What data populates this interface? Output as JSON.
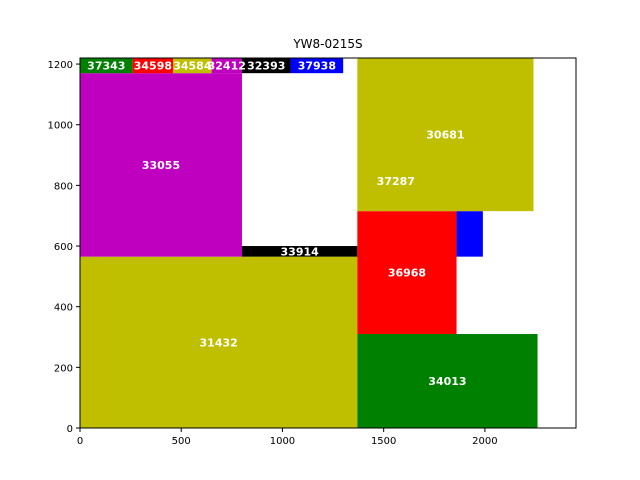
{
  "chart_data": {
    "type": "rectangle-packing",
    "title": "YW8-0215S",
    "xlabel": "",
    "ylabel": "",
    "xlim": [
      0,
      2450
    ],
    "ylim": [
      0,
      1220
    ],
    "xticks": [
      0,
      500,
      1000,
      1500,
      2000
    ],
    "yticks": [
      0,
      200,
      400,
      600,
      800,
      1000,
      1200
    ],
    "grid": false,
    "rects": [
      {
        "label": "31432",
        "x0": 0,
        "y0": 0,
        "x1": 1370,
        "y1": 565,
        "color": "#bfbf00"
      },
      {
        "label": "33055",
        "x0": 0,
        "y0": 565,
        "x1": 800,
        "y1": 1170,
        "color": "#bf00bf"
      },
      {
        "label": "33914",
        "x0": 800,
        "y0": 565,
        "x1": 1370,
        "y1": 600,
        "color": "#000000"
      },
      {
        "label": "37343",
        "x0": 0,
        "y0": 1170,
        "x1": 260,
        "y1": 1220,
        "color": "#008000"
      },
      {
        "label": "34598",
        "x0": 260,
        "y0": 1170,
        "x1": 460,
        "y1": 1220,
        "color": "#ff0000"
      },
      {
        "label": "34584",
        "x0": 460,
        "y0": 1170,
        "x1": 650,
        "y1": 1220,
        "color": "#bfbf00"
      },
      {
        "label": "32412",
        "x0": 650,
        "y0": 1170,
        "x1": 800,
        "y1": 1220,
        "color": "#bf00bf"
      },
      {
        "label": "32393",
        "x0": 800,
        "y0": 1170,
        "x1": 1040,
        "y1": 1220,
        "color": "#000000"
      },
      {
        "label": "37938",
        "x0": 1040,
        "y0": 1170,
        "x1": 1300,
        "y1": 1220,
        "color": "#0000ff"
      },
      {
        "label": "34013",
        "x0": 1370,
        "y0": 0,
        "x1": 2260,
        "y1": 310,
        "color": "#008000"
      },
      {
        "label": "36968",
        "x0": 1370,
        "y0": 310,
        "x1": 1860,
        "y1": 715,
        "color": "#ff0000"
      },
      {
        "label": "",
        "x0": 1860,
        "y0": 565,
        "x1": 1990,
        "y1": 715,
        "color": "#0000ff"
      },
      {
        "label": "30681",
        "x0": 1370,
        "y0": 715,
        "x1": 2240,
        "y1": 1220,
        "color": "#bfbf00"
      }
    ],
    "annotations": [
      {
        "text": "37287",
        "x": 1560,
        "y": 815
      }
    ]
  }
}
